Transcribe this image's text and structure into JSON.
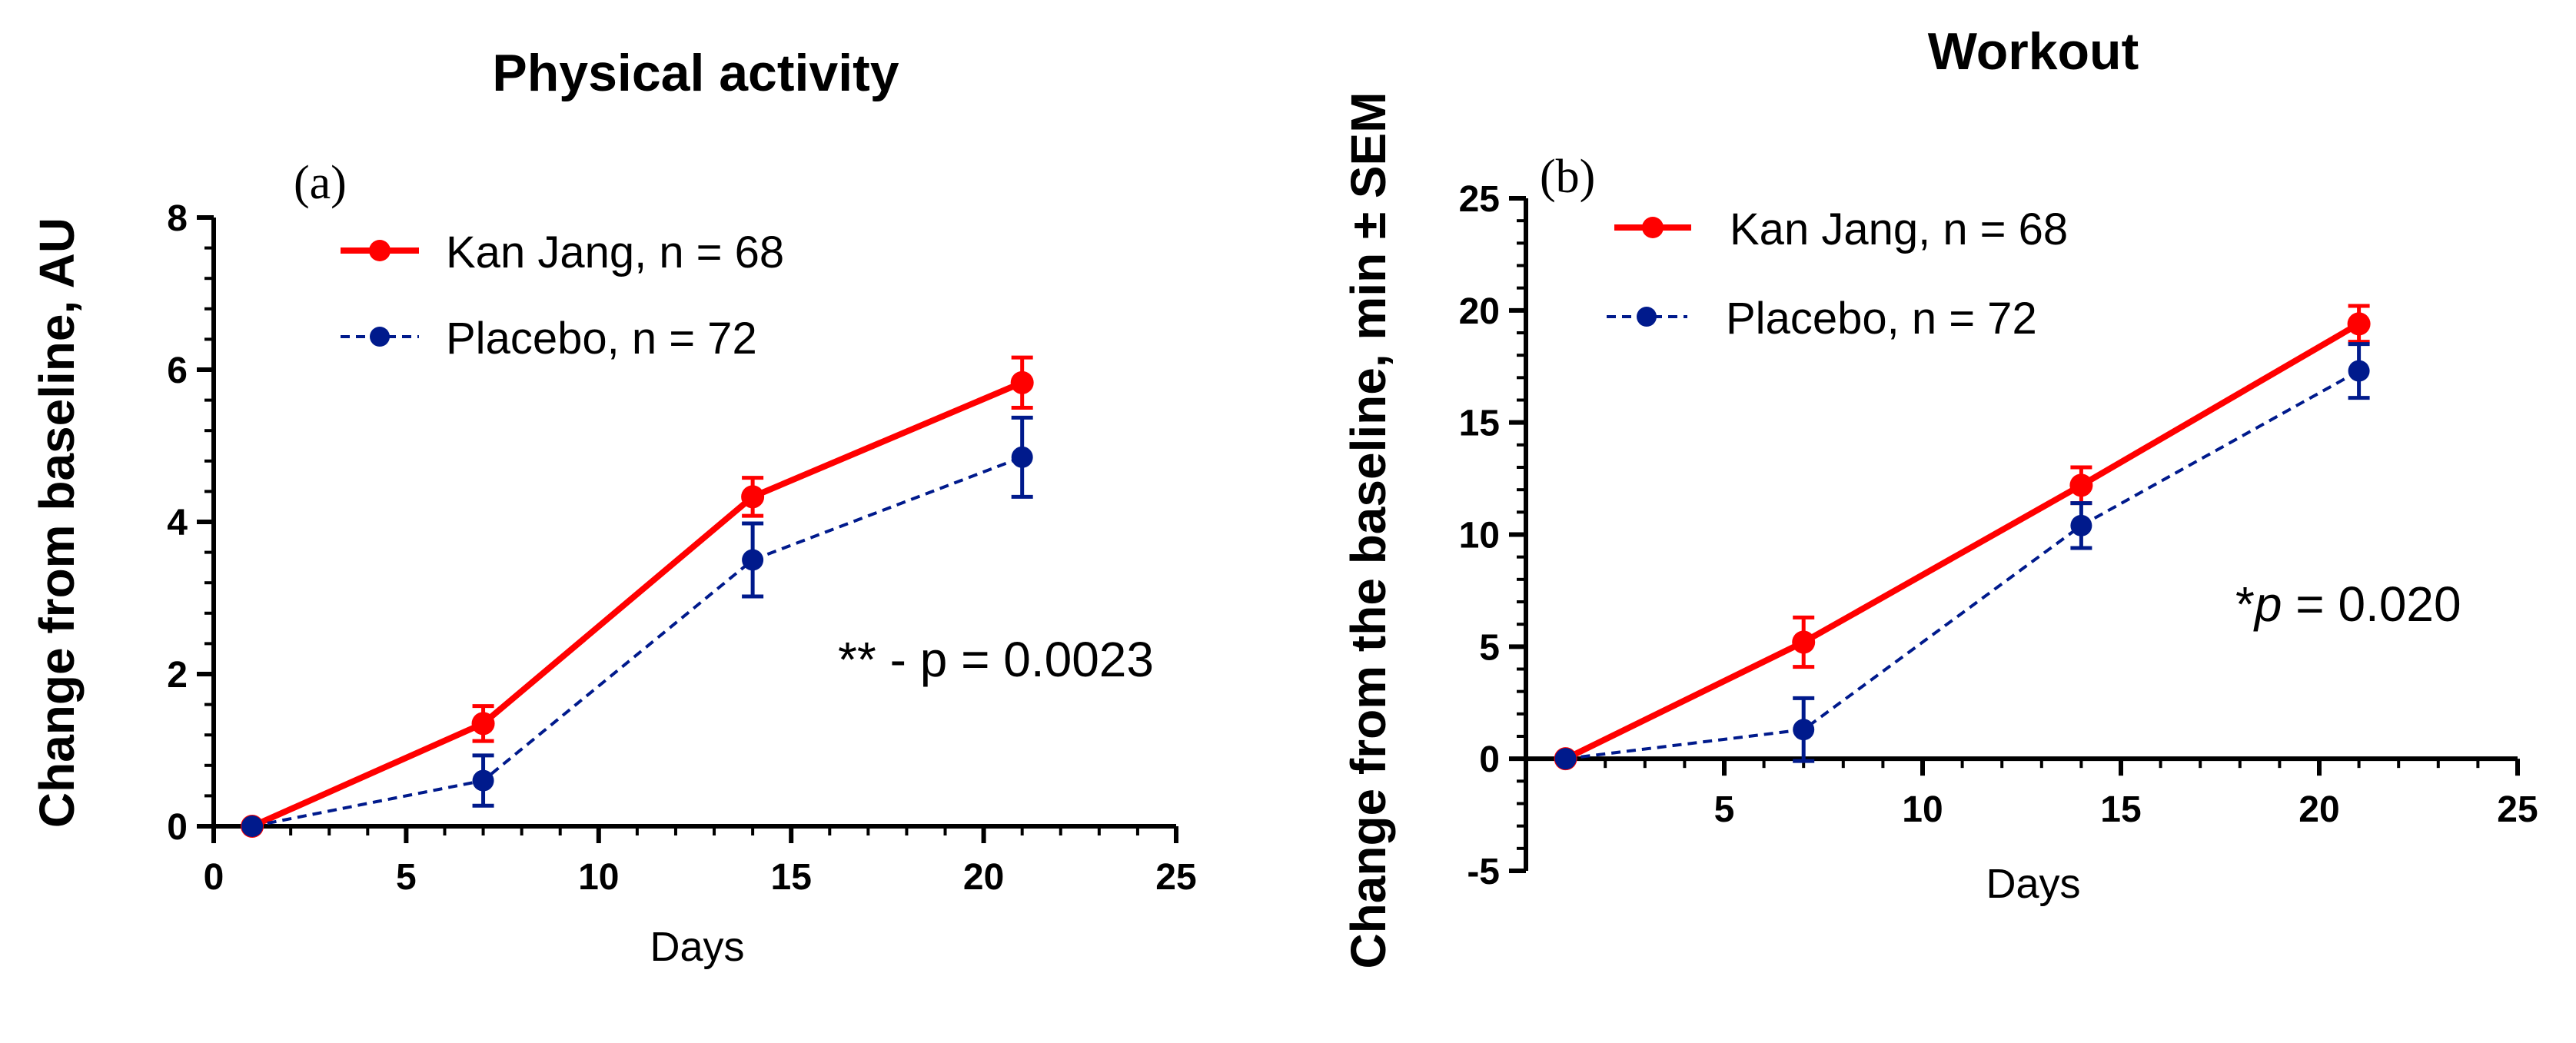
{
  "chart_data": [
    {
      "type": "line",
      "panel_label": "(a)",
      "title": "Physical activity",
      "xlabel": "Days",
      "ylabel": "Change from baseline, AU",
      "xlim": [
        0,
        25
      ],
      "ylim": [
        0,
        8
      ],
      "x_ticks": [
        0,
        5,
        10,
        15,
        20,
        25
      ],
      "y_ticks": [
        0,
        2,
        4,
        6,
        8
      ],
      "legend_position": "top-left",
      "series": [
        {
          "name": "Kan Jang, n = 68",
          "color": "#ff0000",
          "style": "solid",
          "x": [
            1,
            7,
            14,
            21
          ],
          "y": [
            0,
            1.35,
            4.33,
            5.83
          ],
          "sem": [
            0,
            0.23,
            0.25,
            0.33
          ]
        },
        {
          "name": "Placebo, n = 72",
          "color": "#001a8c",
          "style": "dashed",
          "x": [
            1,
            7,
            14,
            21
          ],
          "y": [
            0,
            0.6,
            3.5,
            4.85
          ],
          "sem": [
            0,
            0.33,
            0.48,
            0.52
          ]
        }
      ],
      "annotation": "** - p = 0.0023"
    },
    {
      "type": "line",
      "panel_label": "(b)",
      "title": "Workout",
      "xlabel": "Days",
      "ylabel": "Change from the baseline, min ± SEM",
      "xlim": [
        0,
        25
      ],
      "ylim": [
        -5,
        25
      ],
      "x_ticks": [
        5,
        10,
        15,
        20,
        25
      ],
      "y_ticks": [
        -5,
        0,
        5,
        10,
        15,
        20,
        25
      ],
      "legend_position": "top-left",
      "series": [
        {
          "name": "Kan Jang, n = 68",
          "color": "#ff0000",
          "style": "solid",
          "x": [
            1,
            7,
            14,
            21
          ],
          "y": [
            0,
            5.2,
            12.2,
            19.4
          ],
          "sem": [
            0,
            1.1,
            0.8,
            0.8
          ]
        },
        {
          "name": "Placebo, n = 72",
          "color": "#001a8c",
          "style": "dashed",
          "x": [
            1,
            7,
            14,
            21
          ],
          "y": [
            0,
            1.3,
            10.4,
            17.3
          ],
          "sem": [
            0,
            1.4,
            1.0,
            1.2
          ]
        }
      ],
      "annotation_prefix": "*",
      "annotation_p": "p",
      "annotation_rest": " = 0.020"
    }
  ]
}
